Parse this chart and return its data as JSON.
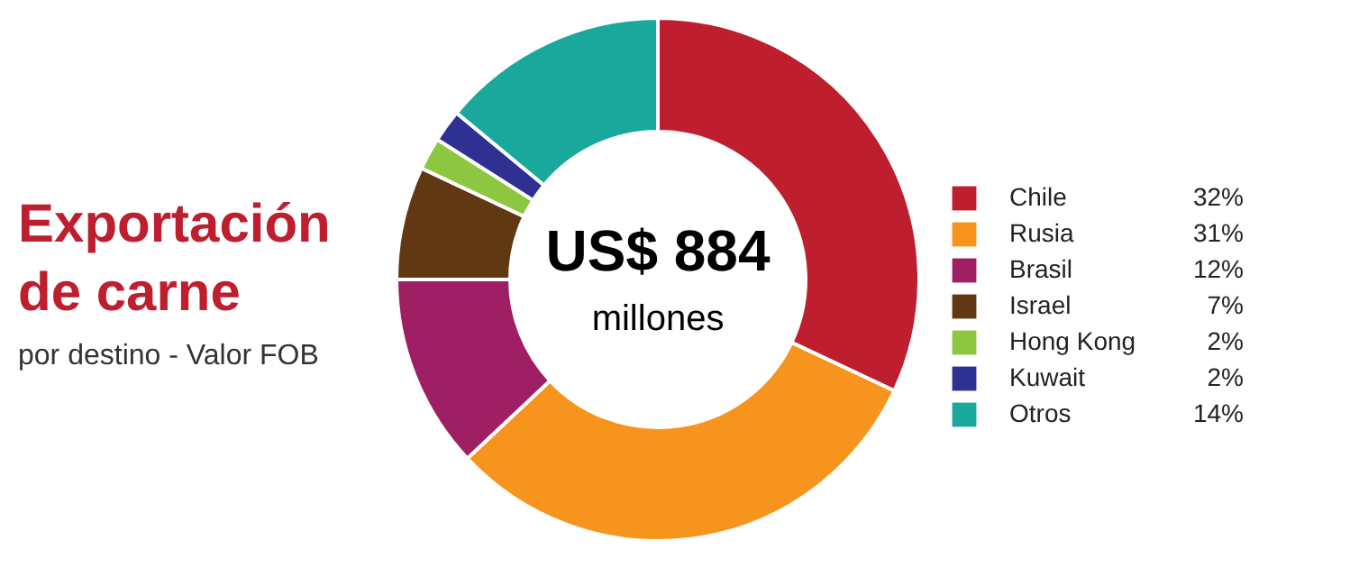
{
  "chart_data": {
    "type": "donut",
    "title": "Exportación de carne",
    "subtitle": "por destino - Valor FOB",
    "categories": [
      "Chile",
      "Rusia",
      "Brasil",
      "Israel",
      "Hong Kong",
      "Kuwait",
      "Otros"
    ],
    "values": [
      32,
      31,
      12,
      7,
      2,
      2,
      14
    ],
    "value_labels": [
      "32%",
      "31%",
      "12%",
      "7%",
      "2%",
      "2%",
      "14%"
    ],
    "colors": [
      "#be1e2d",
      "#f7941d",
      "#9e1f63",
      "#603913",
      "#8dc63f",
      "#2e3192",
      "#1ba89c"
    ],
    "annotations": [
      "US$ 884",
      "millones"
    ],
    "legend": "right"
  }
}
